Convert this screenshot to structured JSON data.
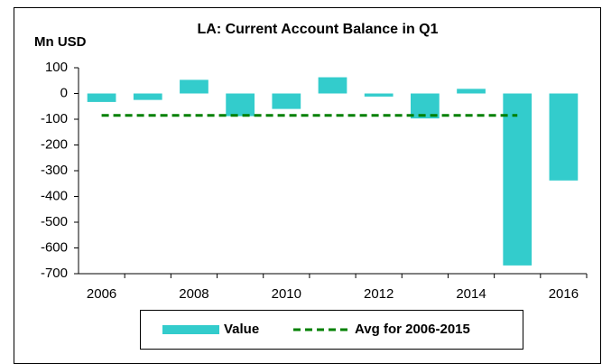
{
  "chart_data": {
    "type": "bar",
    "title": "LA: Current Account Balance in Q1",
    "y_axis_label": "Mn USD",
    "categories": [
      "2006",
      null,
      "2008",
      null,
      "2010",
      null,
      "2012",
      null,
      "2014",
      null,
      "2016"
    ],
    "series": [
      {
        "name": "Value",
        "type": "bar",
        "color": "#33cccc",
        "values": [
          -33,
          -25,
          53,
          -88,
          -60,
          63,
          -12,
          -97,
          18,
          -668,
          -338
        ]
      },
      {
        "name": "Avg for 2006-2015",
        "type": "line",
        "color": "#008000",
        "dashed": true,
        "values": [
          -85,
          -85,
          -85,
          -85,
          -85,
          -85,
          -85,
          -85,
          -85,
          -85,
          null
        ]
      }
    ],
    "ylim": [
      -700,
      100
    ],
    "yticks": [
      100,
      0,
      -100,
      -200,
      -300,
      -400,
      -500,
      -600,
      -700
    ],
    "grid": false,
    "legend": "bottom"
  }
}
